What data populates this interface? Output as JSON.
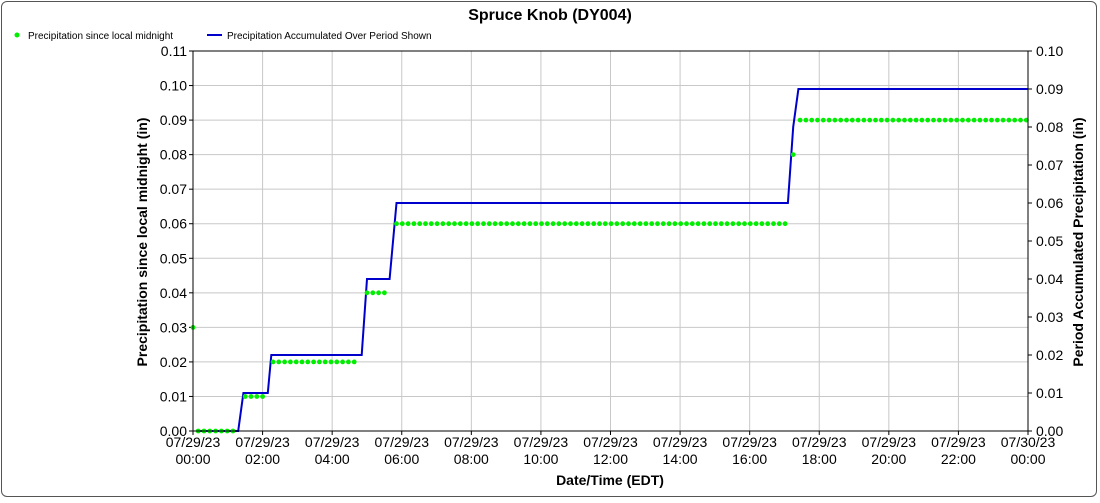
{
  "chart_data": {
    "type": "line",
    "title": "Spruce Knob (DY004)",
    "xlabel": "Date/Time (EDT)",
    "ylabel": "Precipitation since local midnight (in)",
    "ylabel_right": "Period Accumulated Precipitation (in)",
    "grid": true,
    "legend_position": "top-left",
    "x_range": [
      "07/29/23 00:00",
      "07/30/23 00:00"
    ],
    "ylim": [
      0.0,
      0.11
    ],
    "ylim_right": [
      0.0,
      0.1
    ],
    "x_ticks": [
      {
        "date": "07/29/23",
        "time": "00:00",
        "hour": 0
      },
      {
        "date": "07/29/23",
        "time": "02:00",
        "hour": 2
      },
      {
        "date": "07/29/23",
        "time": "04:00",
        "hour": 4
      },
      {
        "date": "07/29/23",
        "time": "06:00",
        "hour": 6
      },
      {
        "date": "07/29/23",
        "time": "08:00",
        "hour": 8
      },
      {
        "date": "07/29/23",
        "time": "10:00",
        "hour": 10
      },
      {
        "date": "07/29/23",
        "time": "12:00",
        "hour": 12
      },
      {
        "date": "07/29/23",
        "time": "14:00",
        "hour": 14
      },
      {
        "date": "07/29/23",
        "time": "16:00",
        "hour": 16
      },
      {
        "date": "07/29/23",
        "time": "18:00",
        "hour": 18
      },
      {
        "date": "07/29/23",
        "time": "20:00",
        "hour": 20
      },
      {
        "date": "07/29/23",
        "time": "22:00",
        "hour": 22
      },
      {
        "date": "07/30/23",
        "time": "00:00",
        "hour": 24
      }
    ],
    "y_ticks_left": [
      "0.00",
      "0.01",
      "0.02",
      "0.03",
      "0.04",
      "0.05",
      "0.06",
      "0.07",
      "0.08",
      "0.09",
      "0.10",
      "0.11"
    ],
    "y_ticks_right": [
      "0.00",
      "0.01",
      "0.02",
      "0.03",
      "0.04",
      "0.05",
      "0.06",
      "0.07",
      "0.08",
      "0.09",
      "0.10"
    ],
    "series": [
      {
        "name": "Precipitation since local midnight",
        "kind": "scatter",
        "axis": "left",
        "color": "#00ee00",
        "segments": [
          {
            "value": 0.03,
            "hours": [
              0.0
            ]
          },
          {
            "value": 0.0,
            "from": 0.15,
            "to": 1.3,
            "step": 0.1667
          },
          {
            "value": 0.01,
            "from": 1.5,
            "to": 2.15,
            "step": 0.1667
          },
          {
            "value": 0.02,
            "from": 2.3,
            "to": 4.8,
            "step": 0.1667
          },
          {
            "value": 0.04,
            "from": 5.0,
            "to": 5.65,
            "step": 0.1667
          },
          {
            "value": 0.06,
            "from": 5.85,
            "to": 17.1,
            "step": 0.1667
          },
          {
            "value": 0.08,
            "hours": [
              17.25
            ]
          },
          {
            "value": 0.09,
            "from": 17.45,
            "to": 24.0,
            "step": 0.1667
          }
        ]
      },
      {
        "name": "Precipitation Accumulated Over Period Shown",
        "kind": "line",
        "axis": "right",
        "color": "#0000cc",
        "points": [
          [
            0.1,
            0.0
          ],
          [
            1.3,
            0.0
          ],
          [
            1.45,
            0.01
          ],
          [
            2.15,
            0.01
          ],
          [
            2.25,
            0.02
          ],
          [
            4.85,
            0.02
          ],
          [
            5.0,
            0.04
          ],
          [
            5.65,
            0.04
          ],
          [
            5.85,
            0.06
          ],
          [
            17.1,
            0.06
          ],
          [
            17.25,
            0.08
          ],
          [
            17.4,
            0.09
          ],
          [
            24.0,
            0.09
          ]
        ]
      }
    ]
  }
}
